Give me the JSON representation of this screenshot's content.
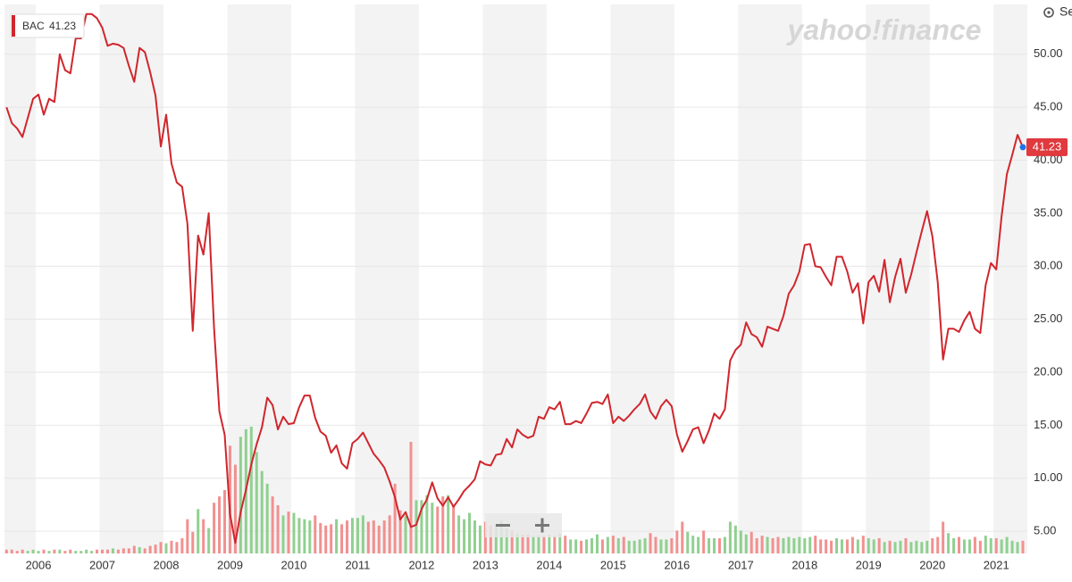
{
  "chart_data": {
    "type": "line",
    "watermark": "yahoo!finance",
    "settings_label": "Settings",
    "categories": [
      null,
      null,
      null,
      null,
      null,
      null,
      "2006",
      null,
      null,
      null,
      null,
      null,
      null,
      null,
      null,
      null,
      null,
      null,
      "2007",
      null,
      null,
      null,
      null,
      null,
      null,
      null,
      null,
      null,
      null,
      null,
      "2008",
      null,
      null,
      null,
      null,
      null,
      null,
      null,
      null,
      null,
      null,
      null,
      "2009",
      null,
      null,
      null,
      null,
      null,
      null,
      null,
      null,
      null,
      null,
      null,
      "2010",
      null,
      null,
      null,
      null,
      null,
      null,
      null,
      null,
      null,
      null,
      null,
      "2011",
      null,
      null,
      null,
      null,
      null,
      null,
      null,
      null,
      null,
      null,
      null,
      "2012",
      null,
      null,
      null,
      null,
      null,
      null,
      null,
      null,
      null,
      null,
      null,
      "2013",
      null,
      null,
      null,
      null,
      null,
      null,
      null,
      null,
      null,
      null,
      null,
      "2014",
      null,
      null,
      null,
      null,
      null,
      null,
      null,
      null,
      null,
      null,
      null,
      "2015",
      null,
      null,
      null,
      null,
      null,
      null,
      null,
      null,
      null,
      null,
      null,
      "2016",
      null,
      null,
      null,
      null,
      null,
      null,
      null,
      null,
      null,
      null,
      null,
      "2017",
      null,
      null,
      null,
      null,
      null,
      null,
      null,
      null,
      null,
      null,
      null,
      "2018",
      null,
      null,
      null,
      null,
      null,
      null,
      null,
      null,
      null,
      null,
      null,
      "2019",
      null,
      null,
      null,
      null,
      null,
      null,
      null,
      null,
      null,
      null,
      null,
      "2020",
      null,
      null,
      null,
      null,
      null,
      null,
      null,
      null,
      null,
      null,
      null,
      "2021",
      null,
      null,
      null,
      null,
      null
    ],
    "series": [
      {
        "name": "BAC",
        "color": "#d0262d",
        "values": [
          45,
          43.5,
          43,
          42.2,
          44,
          45.8,
          46.2,
          44.3,
          45.8,
          45.5,
          50,
          48.5,
          48.2,
          51.5,
          51.5,
          53.8,
          53.8,
          53.4,
          52.5,
          50.8,
          51,
          50.9,
          50.6,
          48.9,
          47.4,
          50.6,
          50.2,
          48.3,
          46.1,
          41.3,
          44.3,
          39.7,
          37.9,
          37.5,
          34,
          23.9,
          32.9,
          31.1,
          35,
          24.2,
          16.3,
          14.1,
          6.6,
          3.9,
          6.8,
          8.9,
          11.3,
          13.2,
          14.8,
          17.6,
          16.9,
          14.6,
          15.8,
          15.1,
          15.2,
          16.7,
          17.8,
          17.8,
          15.7,
          14.4,
          14.0,
          12.4,
          13.1,
          11.4,
          10.9,
          13.3,
          13.7,
          14.3,
          13.3,
          12.3,
          11.7,
          11.0,
          9.7,
          8.2,
          6.1,
          6.8,
          5.4,
          5.6,
          7.1,
          8.0,
          9.6,
          8.1,
          7.4,
          8.2,
          7.3,
          8.0,
          8.8,
          9.3,
          9.9,
          11.6,
          11.3,
          11.2,
          12.2,
          12.3,
          13.7,
          12.9,
          14.6,
          14.1,
          13.8,
          14.0,
          15.8,
          15.6,
          16.7,
          16.5,
          17.2,
          15.1,
          15.1,
          15.4,
          15.2,
          16.1,
          17.1,
          17.2,
          17.0,
          17.9,
          15.2,
          15.8,
          15.4,
          15.9,
          16.5,
          17.0,
          17.9,
          16.3,
          15.6,
          16.8,
          17.4,
          16.8,
          14.1,
          12.5,
          13.5,
          14.6,
          14.8,
          13.3,
          14.5,
          16.1,
          15.6,
          16.5,
          21.1,
          22.1,
          22.6,
          24.7,
          23.6,
          23.3,
          22.4,
          24.3,
          24.1,
          23.9,
          25.3,
          27.4,
          28.2,
          29.5,
          32.0,
          32.1,
          30.0,
          29.9,
          29.0,
          28.2,
          30.9,
          30.9,
          29.5,
          27.5,
          28.4,
          24.6,
          28.5,
          29.1,
          27.6,
          30.6,
          26.6,
          29.0,
          30.7,
          27.5,
          29.2,
          31.3,
          33.3,
          35.2,
          32.8,
          28.5,
          21.2,
          24.1,
          24.1,
          23.8,
          24.9,
          25.7,
          24.1,
          23.7,
          28.2,
          30.3,
          29.7,
          34.7,
          38.7,
          40.5,
          42.4,
          41.23
        ]
      }
    ],
    "volume": {
      "up_color": "#90d090",
      "down_color": "#f29090",
      "values": [
        3,
        3,
        2,
        3,
        2,
        3,
        2,
        3,
        2,
        3,
        3,
        2,
        3,
        2,
        2,
        3,
        2,
        3,
        3,
        3,
        4,
        3,
        4,
        4,
        6,
        5,
        4,
        6,
        7,
        9,
        8,
        10,
        9,
        12,
        27,
        17,
        35,
        27,
        20,
        40,
        45,
        50,
        85,
        70,
        92,
        98,
        100,
        80,
        65,
        55,
        45,
        38,
        30,
        33,
        32,
        28,
        27,
        26,
        30,
        24,
        22,
        23,
        27,
        23,
        26,
        28,
        28,
        30,
        25,
        26,
        22,
        26,
        30,
        55,
        34,
        30,
        88,
        42,
        42,
        46,
        40,
        37,
        45,
        46,
        38,
        30,
        27,
        32,
        26,
        22,
        25,
        22,
        23,
        26,
        20,
        18,
        16,
        15,
        15,
        14,
        14,
        14,
        15,
        14,
        16,
        14,
        11,
        11,
        10,
        11,
        12,
        15,
        11,
        13,
        14,
        12,
        13,
        10,
        10,
        11,
        12,
        16,
        13,
        11,
        11,
        12,
        18,
        25,
        17,
        14,
        13,
        18,
        12,
        12,
        12,
        13,
        25,
        22,
        18,
        15,
        17,
        12,
        14,
        13,
        12,
        13,
        12,
        13,
        12,
        13,
        12,
        13,
        14,
        11,
        11,
        10,
        12,
        11,
        11,
        13,
        11,
        14,
        12,
        11,
        12,
        9,
        10,
        9,
        10,
        12,
        9,
        10,
        9,
        10,
        12,
        13,
        25,
        16,
        12,
        13,
        11,
        11,
        13,
        10,
        14,
        12,
        12,
        11,
        13,
        10,
        9,
        10
      ]
    },
    "ylim": [
      2.9,
      54.7
    ],
    "yticks": [
      {
        "value": 5,
        "label": "5.00"
      },
      {
        "value": 10,
        "label": "10.00"
      },
      {
        "value": 15,
        "label": "15.00"
      },
      {
        "value": 20,
        "label": "20.00"
      },
      {
        "value": 25,
        "label": "25.00"
      },
      {
        "value": 30,
        "label": "30.00"
      },
      {
        "value": 35,
        "label": "35.00"
      },
      {
        "value": 40,
        "label": "40.00"
      },
      {
        "value": 45,
        "label": "45.00"
      },
      {
        "value": 50,
        "label": "50.00"
      }
    ],
    "grid": true,
    "last_value_tag_color": "#e0393e"
  }
}
